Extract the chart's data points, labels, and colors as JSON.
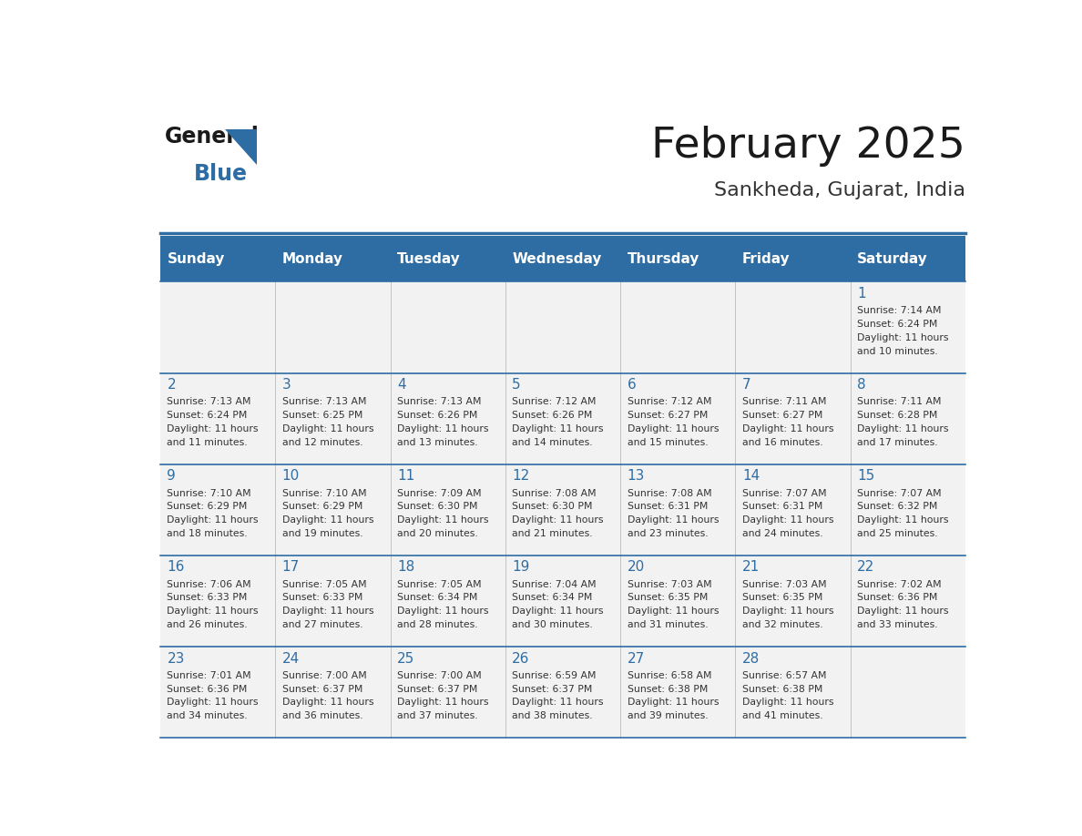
{
  "title": "February 2025",
  "subtitle": "Sankheda, Gujarat, India",
  "header_bg": "#2E6DA4",
  "header_text_color": "#FFFFFF",
  "cell_bg_light": "#F2F2F2",
  "day_number_color": "#2E6DA4",
  "text_color": "#333333",
  "days_of_week": [
    "Sunday",
    "Monday",
    "Tuesday",
    "Wednesday",
    "Thursday",
    "Friday",
    "Saturday"
  ],
  "calendar_data": [
    [
      null,
      null,
      null,
      null,
      null,
      null,
      {
        "day": 1,
        "sunrise": "7:14 AM",
        "sunset": "6:24 PM",
        "daylight_l1": "11 hours",
        "daylight_l2": "and 10 minutes."
      }
    ],
    [
      {
        "day": 2,
        "sunrise": "7:13 AM",
        "sunset": "6:24 PM",
        "daylight_l1": "11 hours",
        "daylight_l2": "and 11 minutes."
      },
      {
        "day": 3,
        "sunrise": "7:13 AM",
        "sunset": "6:25 PM",
        "daylight_l1": "11 hours",
        "daylight_l2": "and 12 minutes."
      },
      {
        "day": 4,
        "sunrise": "7:13 AM",
        "sunset": "6:26 PM",
        "daylight_l1": "11 hours",
        "daylight_l2": "and 13 minutes."
      },
      {
        "day": 5,
        "sunrise": "7:12 AM",
        "sunset": "6:26 PM",
        "daylight_l1": "11 hours",
        "daylight_l2": "and 14 minutes."
      },
      {
        "day": 6,
        "sunrise": "7:12 AM",
        "sunset": "6:27 PM",
        "daylight_l1": "11 hours",
        "daylight_l2": "and 15 minutes."
      },
      {
        "day": 7,
        "sunrise": "7:11 AM",
        "sunset": "6:27 PM",
        "daylight_l1": "11 hours",
        "daylight_l2": "and 16 minutes."
      },
      {
        "day": 8,
        "sunrise": "7:11 AM",
        "sunset": "6:28 PM",
        "daylight_l1": "11 hours",
        "daylight_l2": "and 17 minutes."
      }
    ],
    [
      {
        "day": 9,
        "sunrise": "7:10 AM",
        "sunset": "6:29 PM",
        "daylight_l1": "11 hours",
        "daylight_l2": "and 18 minutes."
      },
      {
        "day": 10,
        "sunrise": "7:10 AM",
        "sunset": "6:29 PM",
        "daylight_l1": "11 hours",
        "daylight_l2": "and 19 minutes."
      },
      {
        "day": 11,
        "sunrise": "7:09 AM",
        "sunset": "6:30 PM",
        "daylight_l1": "11 hours",
        "daylight_l2": "and 20 minutes."
      },
      {
        "day": 12,
        "sunrise": "7:08 AM",
        "sunset": "6:30 PM",
        "daylight_l1": "11 hours",
        "daylight_l2": "and 21 minutes."
      },
      {
        "day": 13,
        "sunrise": "7:08 AM",
        "sunset": "6:31 PM",
        "daylight_l1": "11 hours",
        "daylight_l2": "and 23 minutes."
      },
      {
        "day": 14,
        "sunrise": "7:07 AM",
        "sunset": "6:31 PM",
        "daylight_l1": "11 hours",
        "daylight_l2": "and 24 minutes."
      },
      {
        "day": 15,
        "sunrise": "7:07 AM",
        "sunset": "6:32 PM",
        "daylight_l1": "11 hours",
        "daylight_l2": "and 25 minutes."
      }
    ],
    [
      {
        "day": 16,
        "sunrise": "7:06 AM",
        "sunset": "6:33 PM",
        "daylight_l1": "11 hours",
        "daylight_l2": "and 26 minutes."
      },
      {
        "day": 17,
        "sunrise": "7:05 AM",
        "sunset": "6:33 PM",
        "daylight_l1": "11 hours",
        "daylight_l2": "and 27 minutes."
      },
      {
        "day": 18,
        "sunrise": "7:05 AM",
        "sunset": "6:34 PM",
        "daylight_l1": "11 hours",
        "daylight_l2": "and 28 minutes."
      },
      {
        "day": 19,
        "sunrise": "7:04 AM",
        "sunset": "6:34 PM",
        "daylight_l1": "11 hours",
        "daylight_l2": "and 30 minutes."
      },
      {
        "day": 20,
        "sunrise": "7:03 AM",
        "sunset": "6:35 PM",
        "daylight_l1": "11 hours",
        "daylight_l2": "and 31 minutes."
      },
      {
        "day": 21,
        "sunrise": "7:03 AM",
        "sunset": "6:35 PM",
        "daylight_l1": "11 hours",
        "daylight_l2": "and 32 minutes."
      },
      {
        "day": 22,
        "sunrise": "7:02 AM",
        "sunset": "6:36 PM",
        "daylight_l1": "11 hours",
        "daylight_l2": "and 33 minutes."
      }
    ],
    [
      {
        "day": 23,
        "sunrise": "7:01 AM",
        "sunset": "6:36 PM",
        "daylight_l1": "11 hours",
        "daylight_l2": "and 34 minutes."
      },
      {
        "day": 24,
        "sunrise": "7:00 AM",
        "sunset": "6:37 PM",
        "daylight_l1": "11 hours",
        "daylight_l2": "and 36 minutes."
      },
      {
        "day": 25,
        "sunrise": "7:00 AM",
        "sunset": "6:37 PM",
        "daylight_l1": "11 hours",
        "daylight_l2": "and 37 minutes."
      },
      {
        "day": 26,
        "sunrise": "6:59 AM",
        "sunset": "6:37 PM",
        "daylight_l1": "11 hours",
        "daylight_l2": "and 38 minutes."
      },
      {
        "day": 27,
        "sunrise": "6:58 AM",
        "sunset": "6:38 PM",
        "daylight_l1": "11 hours",
        "daylight_l2": "and 39 minutes."
      },
      {
        "day": 28,
        "sunrise": "6:57 AM",
        "sunset": "6:38 PM",
        "daylight_l1": "11 hours",
        "daylight_l2": "and 41 minutes."
      },
      null
    ]
  ]
}
